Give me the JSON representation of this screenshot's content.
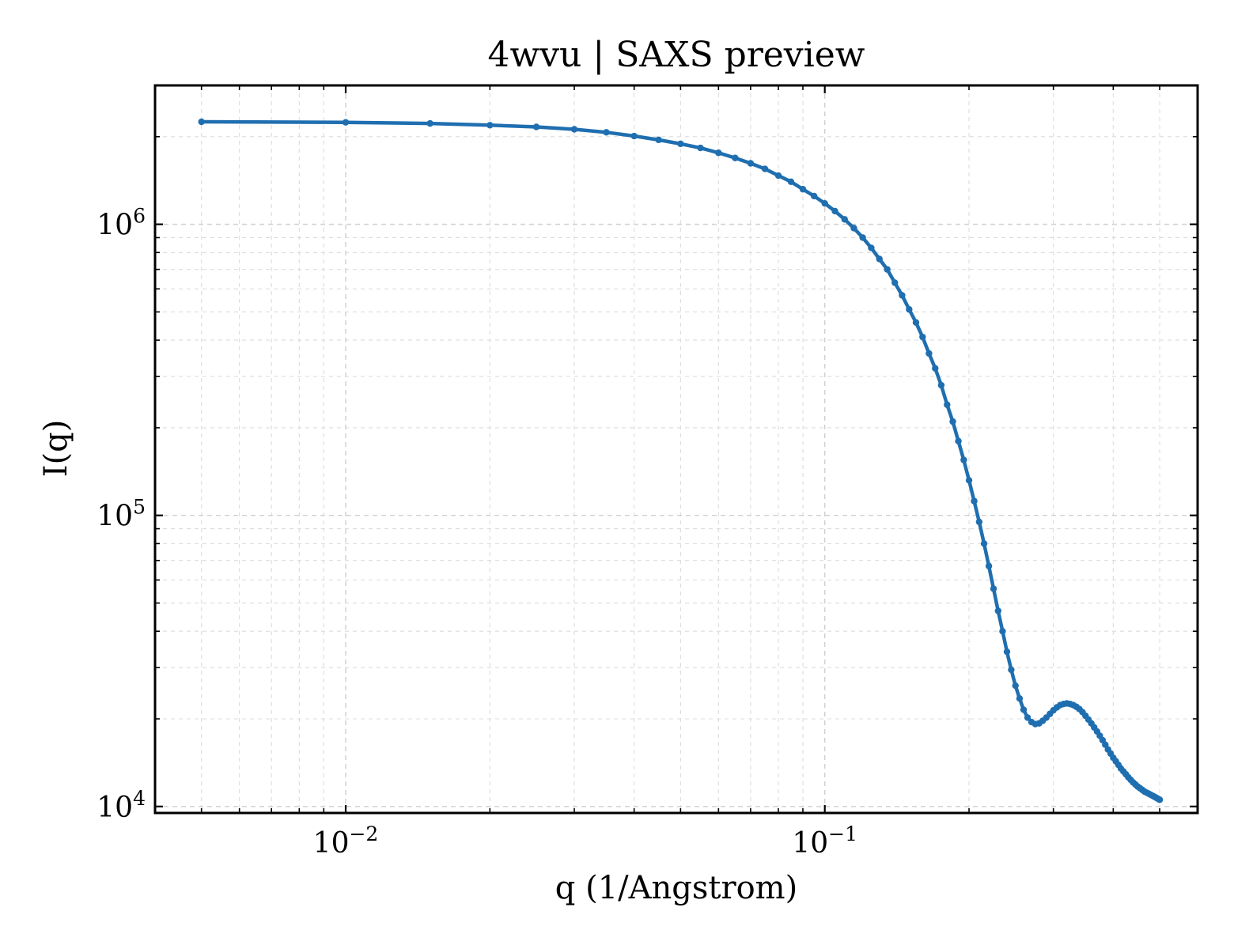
{
  "chart_data": {
    "type": "line",
    "title": "4wvu | SAXS preview",
    "xlabel": "q (1/Angstrom)",
    "ylabel": "I(q)",
    "xscale": "log",
    "yscale": "log",
    "xlim": [
      0.004,
      0.6
    ],
    "ylim": [
      9500,
      3000000
    ],
    "grid": true,
    "legend": "none",
    "colors": {
      "series": "#1f6fb0",
      "frame": "#000000",
      "grid": "#cfcfcf"
    },
    "x_ticks": [
      {
        "value": 0.01,
        "base": "10",
        "exp": "−2"
      },
      {
        "value": 0.1,
        "base": "10",
        "exp": "−1"
      }
    ],
    "y_ticks": [
      {
        "value": 10000,
        "base": "10",
        "exp": "4"
      },
      {
        "value": 100000,
        "base": "10",
        "exp": "5"
      },
      {
        "value": 1000000,
        "base": "10",
        "exp": "6"
      }
    ],
    "series": [
      {
        "x": [
          0.005,
          0.01,
          0.015,
          0.02,
          0.025,
          0.03,
          0.035,
          0.04,
          0.045,
          0.05,
          0.055,
          0.06,
          0.065,
          0.07,
          0.075,
          0.08,
          0.085,
          0.09,
          0.095,
          0.1,
          0.105,
          0.11,
          0.115,
          0.12,
          0.125,
          0.13,
          0.135,
          0.14,
          0.145,
          0.15,
          0.155,
          0.16,
          0.165,
          0.17,
          0.175,
          0.18,
          0.185,
          0.19,
          0.195,
          0.2,
          0.205,
          0.21,
          0.215,
          0.22,
          0.225,
          0.23,
          0.235,
          0.24,
          0.245,
          0.25,
          0.255,
          0.26,
          0.265,
          0.27,
          0.275,
          0.28,
          0.285,
          0.29,
          0.295,
          0.3,
          0.305,
          0.31,
          0.315,
          0.32,
          0.325,
          0.33,
          0.335,
          0.34,
          0.345,
          0.35,
          0.355,
          0.36,
          0.365,
          0.37,
          0.375,
          0.38,
          0.385,
          0.39,
          0.395,
          0.4,
          0.405,
          0.41,
          0.415,
          0.42,
          0.425,
          0.43,
          0.435,
          0.44,
          0.445,
          0.45,
          0.455,
          0.46,
          0.465,
          0.47,
          0.475,
          0.48,
          0.485,
          0.49,
          0.495,
          0.5
        ],
        "y": [
          2250000,
          2240000,
          2220000,
          2190000,
          2160000,
          2120000,
          2070000,
          2010000,
          1950000,
          1890000,
          1830000,
          1760000,
          1690000,
          1620000,
          1550000,
          1470000,
          1400000,
          1320000,
          1250000,
          1180000,
          1110000,
          1040000,
          970000,
          900000,
          830000,
          760000,
          700000,
          630000,
          570000,
          510000,
          460000,
          410000,
          360000,
          320000,
          280000,
          240000,
          210000,
          180000,
          155000,
          132000,
          112000,
          95000,
          80000,
          67000,
          56000,
          47000,
          40000,
          34000,
          29500,
          26000,
          23500,
          21500,
          20200,
          19500,
          19200,
          19300,
          19700,
          20200,
          20800,
          21400,
          21900,
          22300,
          22500,
          22600,
          22500,
          22300,
          22000,
          21600,
          21100,
          20500,
          19900,
          19300,
          18700,
          18100,
          17500,
          16900,
          16300,
          15700,
          15200,
          14700,
          14300,
          13900,
          13500,
          13200,
          12900,
          12600,
          12350,
          12100,
          11900,
          11700,
          11550,
          11400,
          11250,
          11150,
          11050,
          10950,
          10850,
          10750,
          10650,
          10550
        ]
      }
    ]
  }
}
